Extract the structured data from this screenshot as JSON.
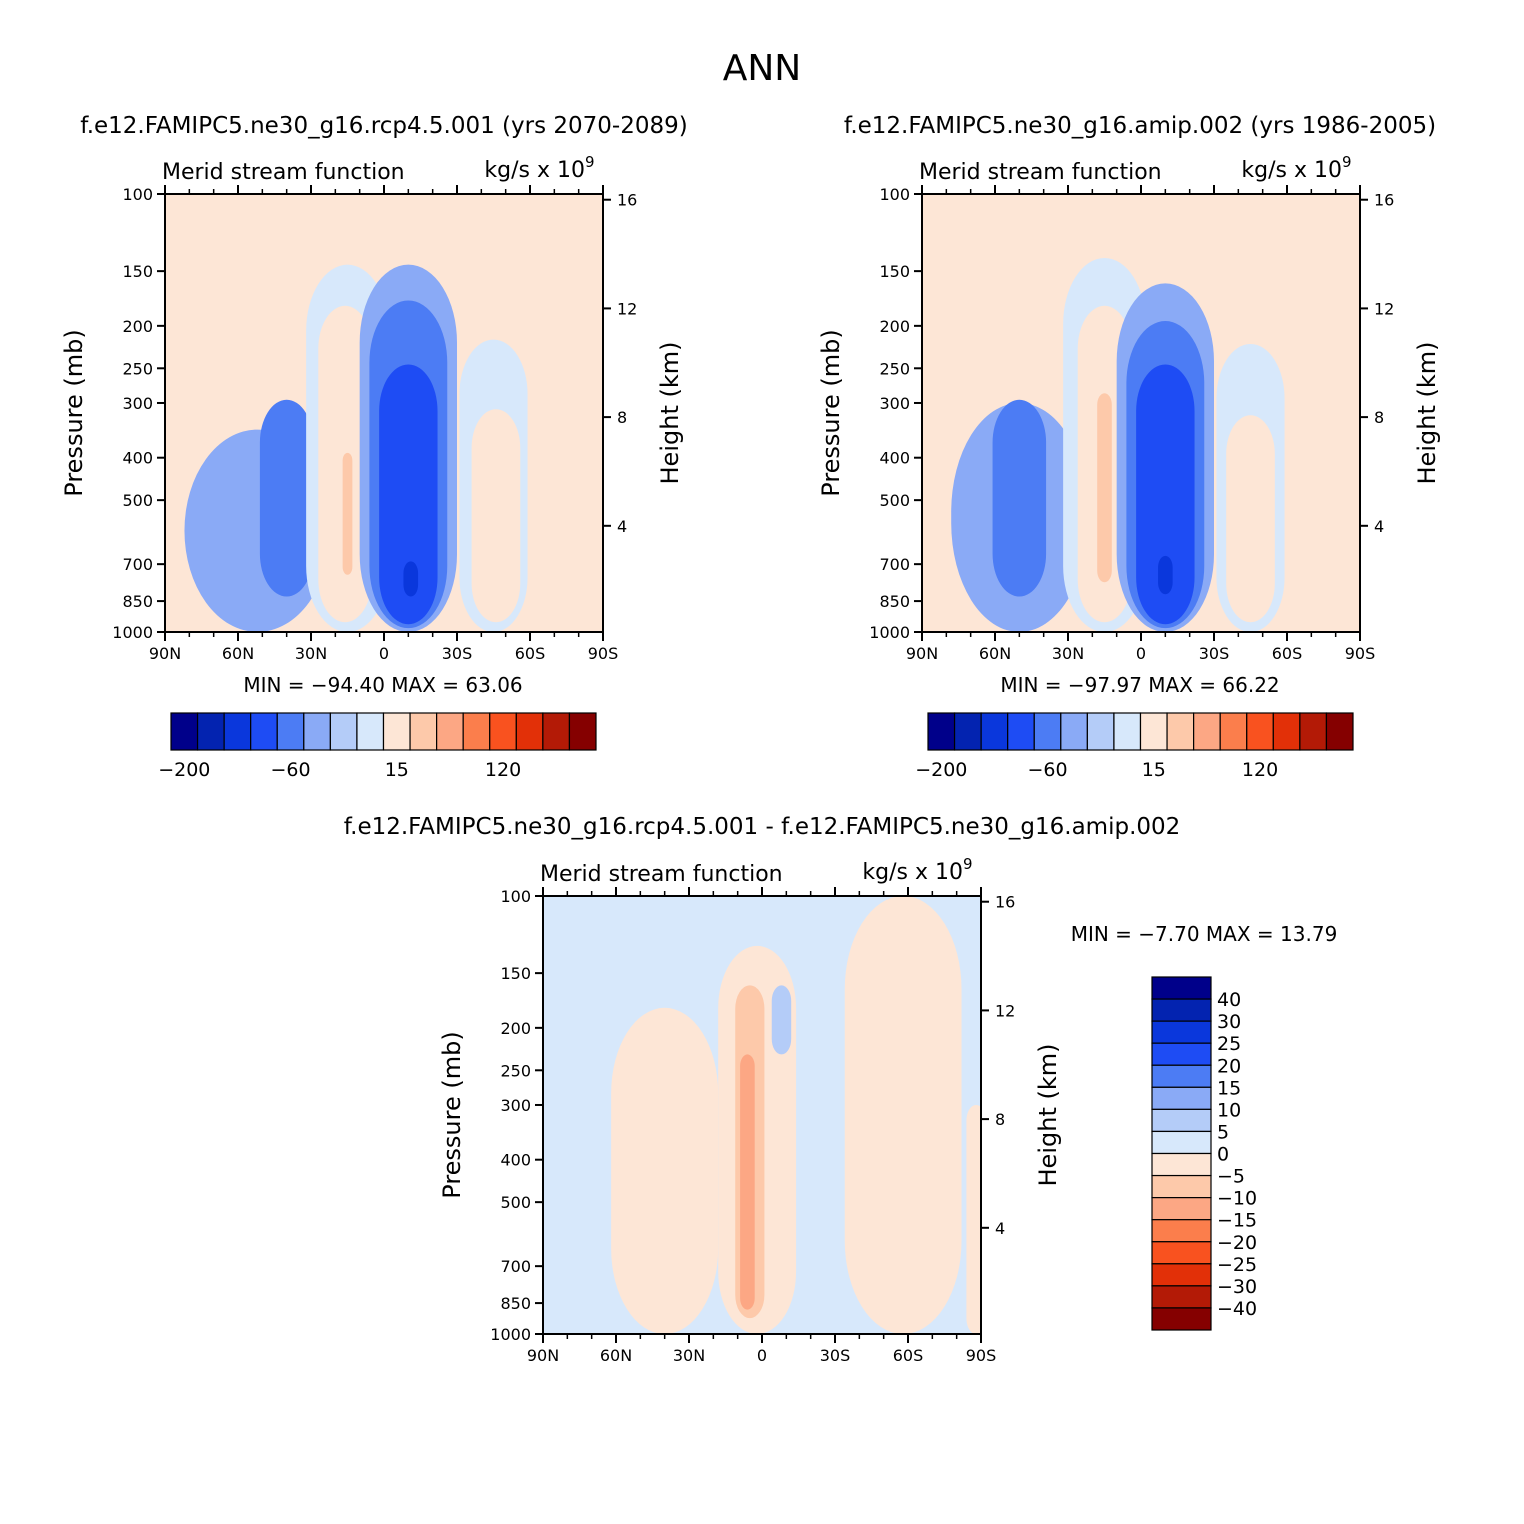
{
  "figure": {
    "title": "ANN",
    "case_a": "f.e12.FAMIPC5.ne30_g16.rcp4.5.001 (yrs 2070-2089)",
    "case_b": "f.e12.FAMIPC5.ne30_g16.amip.002 (yrs 1986-2005)",
    "diff_title": "f.e12.FAMIPC5.ne30_g16.rcp4.5.001 - f.e12.FAMIPC5.ne30_g16.amip.002"
  },
  "colors": {
    "main_palette": [
      "#00008a",
      "#0323b0",
      "#0a37dc",
      "#1e4cf4",
      "#4c7cf4",
      "#8aaaf6",
      "#b4ccf8",
      "#d7e8fb",
      "#fde6d6",
      "#fdc9aa",
      "#fca784",
      "#fb7e4c",
      "#f9521f",
      "#e23008",
      "#b31a06",
      "#850000"
    ],
    "diff_palette": [
      "#00008a",
      "#0323b0",
      "#0a37dc",
      "#1e4cf4",
      "#4c7cf4",
      "#8aaaf6",
      "#b4ccf8",
      "#d7e8fb",
      "#fde6d6",
      "#fdc9aa",
      "#fca784",
      "#fb7e4c",
      "#f9521f",
      "#e23008",
      "#b31a06",
      "#850000"
    ]
  },
  "chart_data": [
    {
      "type": "heatmap",
      "id": "panel_a",
      "title_left": "Merid stream function",
      "units": "kg/s x 10",
      "units_exp": "9",
      "xlabel": "",
      "ylabel": "Pressure (mb)",
      "ylabel_right": "Height (km)",
      "x_ticks": [
        "90N",
        "60N",
        "30N",
        "0",
        "30S",
        "60S",
        "90S"
      ],
      "y_ticks": [
        100,
        150,
        200,
        250,
        300,
        400,
        500,
        700,
        850,
        1000
      ],
      "height_ticks": [
        4,
        8,
        12,
        16
      ],
      "ylim": [
        100,
        1000
      ],
      "y_scale": "log",
      "stats": "MIN =  -94.40   MAX =   63.06",
      "colorbar": {
        "orientation": "horizontal",
        "labels": [
          "-200",
          "-60",
          "15",
          "120"
        ]
      },
      "cells": [
        {
          "lat": 52,
          "p_top": 345,
          "p_bot": 1000,
          "w": 30,
          "value": -10
        },
        {
          "lat": 40,
          "p_top": 295,
          "p_bot": 830,
          "w": 11,
          "value": -20
        },
        {
          "lat": 15,
          "p_top": 145,
          "p_bot": 1000,
          "w": 17,
          "value": 10
        },
        {
          "lat": 16,
          "p_top": 180,
          "p_bot": 950,
          "w": 11,
          "value": 20
        },
        {
          "lat": 15,
          "p_top": 390,
          "p_bot": 740,
          "w": 2,
          "value": 40
        },
        {
          "lat": -10,
          "p_top": 145,
          "p_bot": 1000,
          "w": 20,
          "value": -10
        },
        {
          "lat": -10,
          "p_top": 175,
          "p_bot": 980,
          "w": 16,
          "value": -20
        },
        {
          "lat": -10,
          "p_top": 245,
          "p_bot": 960,
          "w": 12,
          "value": -60
        },
        {
          "lat": -11,
          "p_top": 690,
          "p_bot": 830,
          "w": 3,
          "value": -100
        },
        {
          "lat": -45,
          "p_top": 215,
          "p_bot": 1000,
          "w": 14,
          "value": 10
        },
        {
          "lat": -46,
          "p_top": 310,
          "p_bot": 950,
          "w": 10,
          "value": 20
        }
      ]
    },
    {
      "type": "heatmap",
      "id": "panel_b",
      "title_left": "Merid stream function",
      "units": "kg/s x 10",
      "units_exp": "9",
      "xlabel": "",
      "ylabel": "Pressure (mb)",
      "ylabel_right": "Height (km)",
      "x_ticks": [
        "90N",
        "60N",
        "30N",
        "0",
        "30S",
        "60S",
        "90S"
      ],
      "y_ticks": [
        100,
        150,
        200,
        250,
        300,
        400,
        500,
        700,
        850,
        1000
      ],
      "height_ticks": [
        4,
        8,
        12,
        16
      ],
      "ylim": [
        100,
        1000
      ],
      "y_scale": "log",
      "stats": "MIN =  -97.97   MAX =   66.22",
      "colorbar": {
        "orientation": "horizontal",
        "labels": [
          "-200",
          "-60",
          "15",
          "120"
        ]
      },
      "cells": [
        {
          "lat": 50,
          "p_top": 300,
          "p_bot": 1000,
          "w": 28,
          "value": -10
        },
        {
          "lat": 50,
          "p_top": 295,
          "p_bot": 830,
          "w": 11,
          "value": -20
        },
        {
          "lat": 15,
          "p_top": 140,
          "p_bot": 1000,
          "w": 17,
          "value": 10
        },
        {
          "lat": 15,
          "p_top": 180,
          "p_bot": 950,
          "w": 11,
          "value": 20
        },
        {
          "lat": 15,
          "p_top": 285,
          "p_bot": 770,
          "w": 3,
          "value": 40
        },
        {
          "lat": -10,
          "p_top": 160,
          "p_bot": 1000,
          "w": 20,
          "value": -10
        },
        {
          "lat": -10,
          "p_top": 195,
          "p_bot": 980,
          "w": 16,
          "value": -20
        },
        {
          "lat": -10,
          "p_top": 245,
          "p_bot": 960,
          "w": 12,
          "value": -60
        },
        {
          "lat": -10,
          "p_top": 670,
          "p_bot": 820,
          "w": 3,
          "value": -100
        },
        {
          "lat": -45,
          "p_top": 220,
          "p_bot": 1000,
          "w": 14,
          "value": 10
        },
        {
          "lat": -45,
          "p_top": 320,
          "p_bot": 950,
          "w": 10,
          "value": 20
        }
      ]
    },
    {
      "type": "heatmap",
      "id": "panel_diff",
      "title_left": "Merid stream function",
      "units": "kg/s x 10",
      "units_exp": "9",
      "xlabel": "",
      "ylabel": "Pressure (mb)",
      "ylabel_right": "Height (km)",
      "x_ticks": [
        "90N",
        "60N",
        "30N",
        "0",
        "30S",
        "60S",
        "90S"
      ],
      "y_ticks": [
        100,
        150,
        200,
        250,
        300,
        400,
        500,
        700,
        850,
        1000
      ],
      "height_ticks": [
        4,
        8,
        12,
        16
      ],
      "ylim": [
        100,
        1000
      ],
      "y_scale": "log",
      "stats": "MIN =   -7.70   MAX =   13.79",
      "colorbar": {
        "orientation": "vertical",
        "labels": [
          "40",
          "30",
          "25",
          "20",
          "15",
          "10",
          "5",
          "0",
          "-5",
          "-10",
          "-15",
          "-20",
          "-25",
          "-30",
          "-40"
        ]
      },
      "cells": [
        {
          "lat": 40,
          "p_top": 180,
          "p_bot": 1000,
          "w": 22,
          "value": 2
        },
        {
          "lat": 2,
          "p_top": 130,
          "p_bot": 1000,
          "w": 16,
          "value": 2
        },
        {
          "lat": 5,
          "p_top": 160,
          "p_bot": 920,
          "w": 6,
          "value": 7
        },
        {
          "lat": 6,
          "p_top": 230,
          "p_bot": 880,
          "w": 3,
          "value": 12
        },
        {
          "lat": -8,
          "p_top": 160,
          "p_bot": 230,
          "w": 4,
          "value": -7
        },
        {
          "lat": -58,
          "p_top": 100,
          "p_bot": 1000,
          "w": 24,
          "value": 2
        },
        {
          "lat": -88,
          "p_top": 300,
          "p_bot": 1000,
          "w": 4,
          "value": 2
        }
      ]
    }
  ]
}
